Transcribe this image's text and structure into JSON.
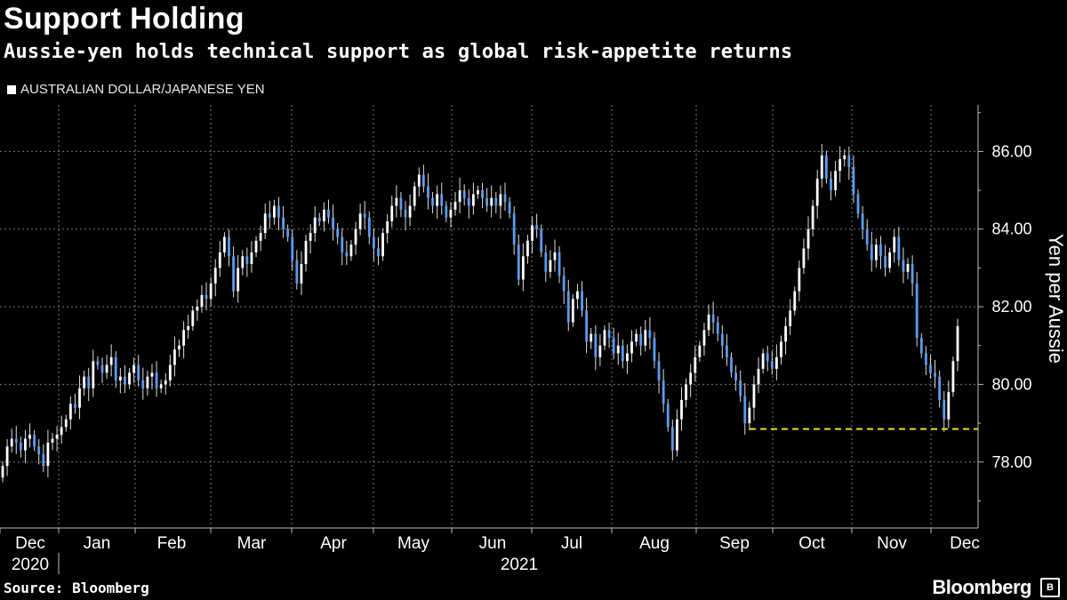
{
  "header": {
    "title": "Support Holding",
    "subtitle": "Aussie-yen holds technical support as global risk-appetite returns",
    "legend_label": "AUSTRALIAN DOLLAR/JAPANESE YEN"
  },
  "footer": {
    "source": "Source: Bloomberg",
    "brand": "Bloomberg"
  },
  "chart_data": {
    "type": "candlestick",
    "title": "Support Holding",
    "ylabel": "Yen per Aussie",
    "ylim": [
      76.3,
      87.2
    ],
    "yticks": [
      "86.00",
      "84.00",
      "82.00",
      "80.00",
      "78.00"
    ],
    "ytick_values": [
      86,
      84,
      82,
      80,
      78
    ],
    "xticks": [
      "Dec",
      "Jan",
      "Feb",
      "Mar",
      "Apr",
      "May",
      "Jun",
      "Jul",
      "Aug",
      "Sep",
      "Oct",
      "Nov",
      "Dec"
    ],
    "year_labels": [
      "2020",
      "2021"
    ],
    "grid": true,
    "support_level": 78.85,
    "colors": {
      "up": "#ffffff",
      "down": "#5b9cf0",
      "support": "#e6df1a",
      "grid": "#777777"
    },
    "series": [
      {
        "values": [
          77.9,
          78.4,
          78.6,
          78.5,
          78.3,
          78.6,
          78.7,
          78.4,
          78.2,
          77.9,
          78.5,
          78.6,
          78.7,
          78.9,
          79.1,
          79.5,
          79.4,
          79.9,
          80.2,
          79.9,
          80.6,
          80.5,
          80.3,
          80.5,
          80.7,
          80.1,
          80.2,
          80.0,
          80.3,
          80.5,
          80.1,
          79.9,
          80.2,
          80.3,
          79.9,
          80.0,
          80.1,
          80.5,
          80.9,
          81.0,
          81.4,
          81.5,
          81.9,
          82.0,
          82.3,
          82.2,
          82.6,
          83.0,
          83.4,
          83.8,
          83.3,
          82.4,
          83.0,
          83.3,
          83.1,
          83.4,
          83.7,
          83.9,
          84.4,
          84.3,
          84.6,
          84.3,
          84.0,
          83.8,
          83.2,
          82.6,
          83.1,
          83.7,
          83.9,
          84.3,
          84.2,
          84.5,
          84.3,
          84.0,
          83.8,
          83.4,
          83.3,
          83.6,
          84.0,
          84.4,
          84.3,
          83.8,
          83.5,
          83.3,
          83.9,
          84.2,
          84.6,
          84.8,
          84.5,
          84.3,
          84.6,
          85.1,
          85.4,
          85.1,
          84.8,
          84.6,
          84.9,
          84.6,
          84.3,
          84.5,
          84.7,
          85.0,
          84.8,
          84.6,
          84.9,
          85.0,
          84.8,
          84.6,
          84.8,
          84.6,
          84.9,
          84.7,
          84.4,
          83.6,
          82.7,
          83.3,
          83.7,
          84.1,
          84.0,
          83.4,
          82.9,
          83.2,
          83.4,
          82.8,
          82.4,
          81.6,
          82.2,
          82.4,
          81.9,
          81.1,
          81.3,
          80.7,
          81.0,
          81.4,
          81.2,
          80.8,
          81.0,
          80.6,
          80.8,
          81.1,
          81.3,
          81.0,
          81.4,
          81.2,
          80.6,
          80.1,
          79.5,
          78.9,
          78.3,
          79.1,
          79.6,
          80.0,
          80.3,
          80.7,
          81.0,
          81.4,
          81.8,
          81.6,
          81.3,
          81.0,
          80.7,
          80.3,
          80.1,
          79.7,
          79.0,
          79.4,
          80.0,
          80.4,
          80.8,
          80.6,
          80.4,
          80.7,
          81.1,
          81.5,
          81.9,
          82.4,
          83.0,
          83.5,
          84.0,
          84.6,
          85.3,
          85.9,
          85.3,
          85.0,
          85.5,
          85.8,
          85.9,
          85.6,
          84.9,
          84.4,
          84.0,
          83.6,
          83.2,
          83.6,
          83.3,
          83.0,
          83.4,
          83.8,
          83.2,
          82.9,
          83.1,
          82.6,
          81.2,
          80.8,
          80.5,
          80.3,
          80.2,
          79.6,
          79.1,
          79.8,
          80.6,
          81.5
        ]
      }
    ]
  }
}
